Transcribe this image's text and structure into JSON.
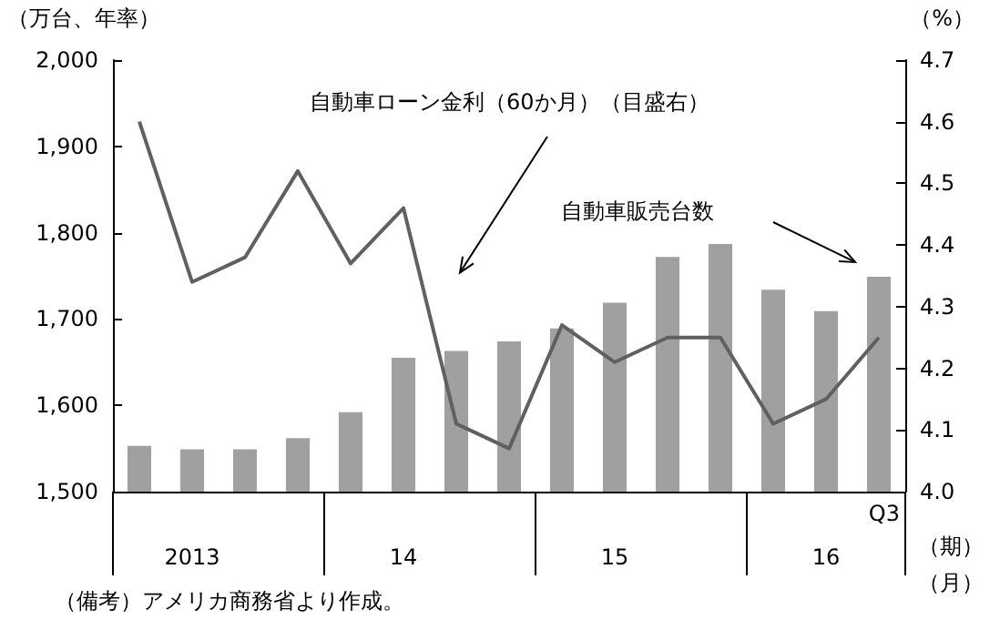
{
  "chart_data": {
    "type": "bar",
    "categories": [
      null,
      "2013",
      null,
      null,
      null,
      "14",
      null,
      null,
      null,
      "15",
      null,
      null,
      null,
      "16",
      null
    ],
    "series": [
      {
        "name": "自動車販売台数",
        "type": "bar",
        "color": "#a0a0a0",
        "values": [
          1553,
          1549,
          1549,
          1562,
          1592,
          1655,
          1663,
          1674,
          1689,
          1719,
          1772,
          1787,
          1734,
          1709,
          1749
        ]
      },
      {
        "name": "自動車ローン金利（60か月）（目盛右）",
        "type": "line",
        "axis": "y2",
        "color": "#606060",
        "values": [
          4.6,
          4.34,
          4.38,
          4.52,
          4.37,
          4.46,
          4.11,
          4.07,
          4.27,
          4.21,
          4.25,
          4.25,
          4.11,
          4.15,
          4.25
        ]
      }
    ],
    "ylim": [
      1500,
      2000
    ],
    "yticks": [
      {
        "value": 1500,
        "label": "1,500"
      },
      {
        "value": 1600,
        "label": "1,600"
      },
      {
        "value": 1700,
        "label": "1,700"
      },
      {
        "value": 1800,
        "label": "1,800"
      },
      {
        "value": 1900,
        "label": "1,900"
      },
      {
        "value": 2000,
        "label": "2,000"
      }
    ],
    "y2lim": [
      4.0,
      4.7
    ],
    "y2ticks": [
      {
        "value": 4.0,
        "label": "4.0"
      },
      {
        "value": 4.1,
        "label": "4.1"
      },
      {
        "value": 4.2,
        "label": "4.2"
      },
      {
        "value": 4.3,
        "label": "4.3"
      },
      {
        "value": 4.4,
        "label": "4.4"
      },
      {
        "value": 4.5,
        "label": "4.5"
      },
      {
        "value": 4.6,
        "label": "4.6"
      },
      {
        "value": 4.7,
        "label": "4.7"
      }
    ],
    "ylabel": "（万台、年率）",
    "y2label": "（%）",
    "xlabel": "（期）（月）",
    "annotations": [
      "Q3",
      "（備考）アメリカ商務省より作成。"
    ],
    "grid": false,
    "legend": false,
    "marker": "none",
    "line_style": "solid"
  }
}
